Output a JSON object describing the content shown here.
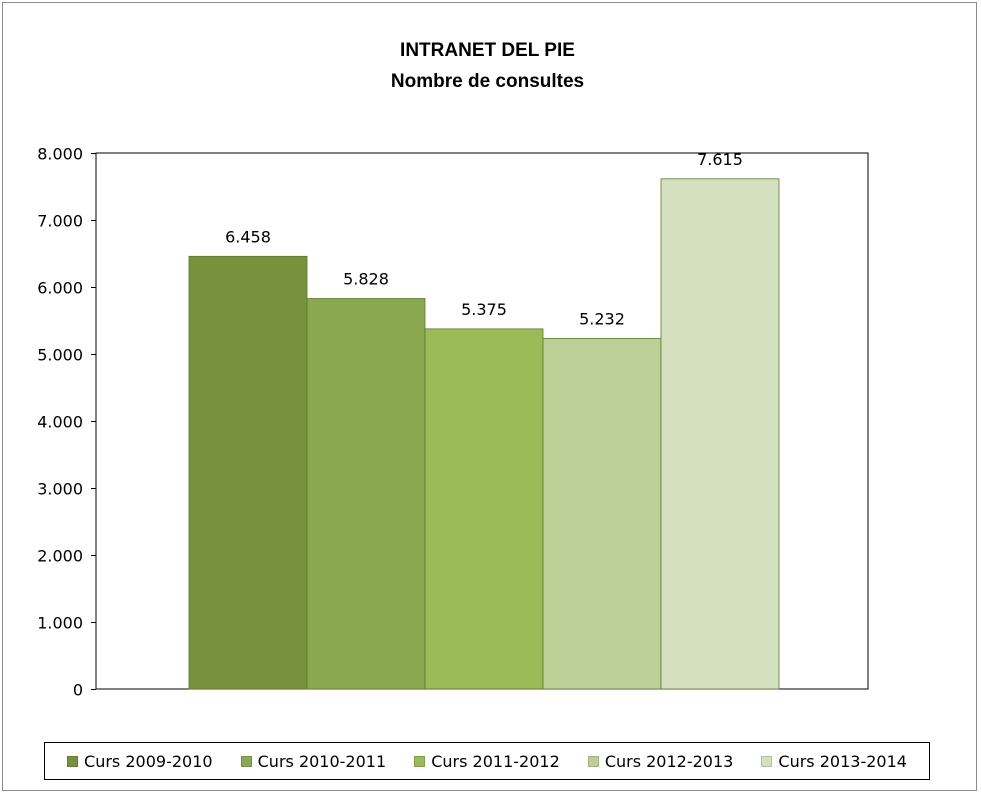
{
  "chart_data": {
    "type": "bar",
    "title": "INTRANET DEL PIE",
    "subtitle": "Nombre de consultes",
    "categories": [
      ""
    ],
    "series": [
      {
        "name": "Curs 2009-2010",
        "values": [
          6458
        ],
        "label": "6.458",
        "color": "#76923c"
      },
      {
        "name": "Curs 2010-2011",
        "values": [
          5828
        ],
        "label": "5.828",
        "color": "#8aa84f"
      },
      {
        "name": "Curs 2011-2012",
        "values": [
          5375
        ],
        "label": "5.375",
        "color": "#9bbb59"
      },
      {
        "name": "Curs 2012-2013",
        "values": [
          5232
        ],
        "label": "5.232",
        "color": "#bccf96"
      },
      {
        "name": "Curs 2013-2014",
        "values": [
          7615
        ],
        "label": "7.615",
        "color": "#d4e0bf"
      }
    ],
    "ylim": [
      0,
      8000
    ],
    "yticks": [
      0,
      1000,
      2000,
      3000,
      4000,
      5000,
      6000,
      7000,
      8000
    ],
    "ytick_labels": [
      "0",
      "1.000",
      "2.000",
      "3.000",
      "4.000",
      "5.000",
      "6.000",
      "7.000",
      "8.000"
    ],
    "grid": false,
    "legend_position": "bottom"
  }
}
